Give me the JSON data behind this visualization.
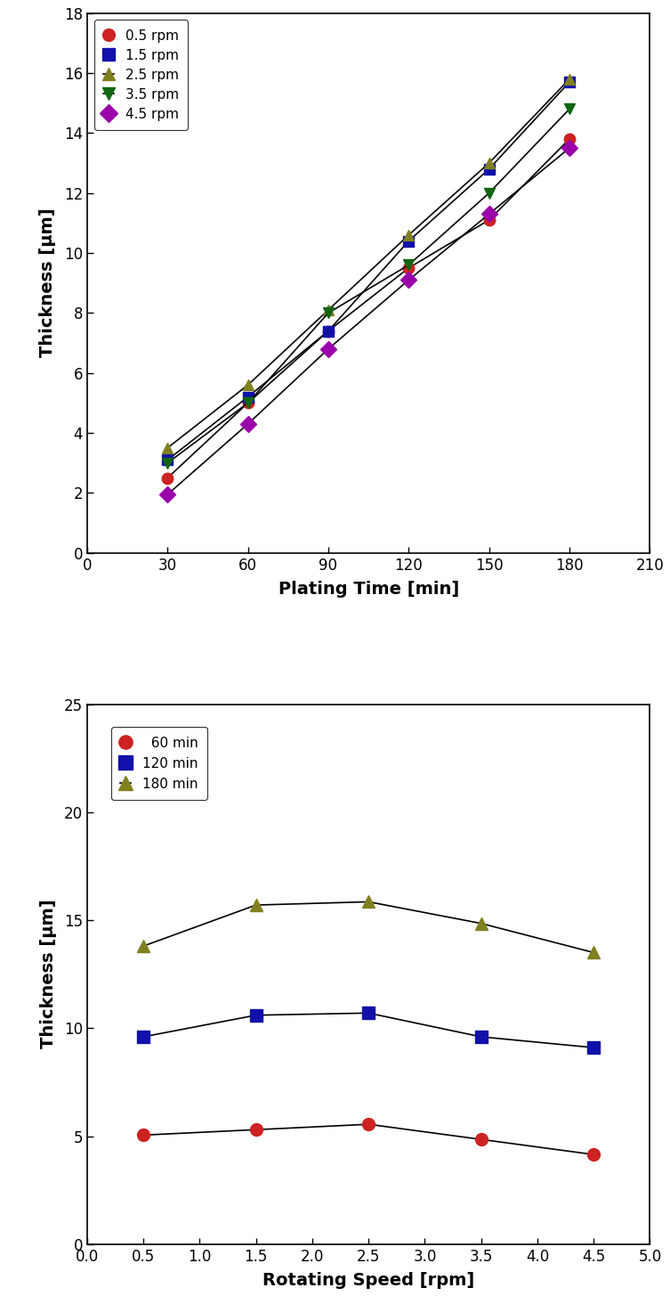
{
  "plot1": {
    "xlabel": "Plating Time [min]",
    "ylabel": "Thickness [μm]",
    "xlim": [
      0,
      210
    ],
    "ylim": [
      0,
      18
    ],
    "xticks": [
      0,
      30,
      60,
      90,
      120,
      150,
      180,
      210
    ],
    "yticks": [
      0,
      2,
      4,
      6,
      8,
      10,
      12,
      14,
      16,
      18
    ],
    "series": [
      {
        "label": "0.5 rpm",
        "color": "#CC2222",
        "marker": "o",
        "x": [
          30,
          60,
          90,
          120,
          150,
          180
        ],
        "y": [
          2.5,
          5.0,
          7.4,
          9.5,
          11.1,
          13.8
        ]
      },
      {
        "label": "1.5 rpm",
        "color": "#1111AA",
        "marker": "s",
        "x": [
          30,
          60,
          90,
          120,
          150,
          180
        ],
        "y": [
          3.1,
          5.2,
          7.4,
          10.4,
          12.8,
          15.7
        ]
      },
      {
        "label": "2.5 rpm",
        "color": "#808020",
        "marker": "^",
        "x": [
          30,
          60,
          90,
          120,
          150,
          180
        ],
        "y": [
          3.5,
          5.6,
          8.1,
          10.6,
          13.0,
          15.8
        ]
      },
      {
        "label": "3.5 rpm",
        "color": "#116611",
        "marker": "v",
        "x": [
          30,
          60,
          90,
          120,
          150,
          180
        ],
        "y": [
          3.0,
          5.0,
          8.0,
          9.6,
          12.0,
          14.8
        ]
      },
      {
        "label": "4.5 rpm",
        "color": "#9900AA",
        "marker": "D",
        "x": [
          30,
          60,
          90,
          120,
          150,
          180
        ],
        "y": [
          1.95,
          4.3,
          6.8,
          9.1,
          11.3,
          13.5
        ]
      }
    ]
  },
  "plot2": {
    "xlabel": "Rotating Speed [rpm]",
    "ylabel": "Thickness [μm]",
    "xlim": [
      0.0,
      5.0
    ],
    "ylim": [
      0,
      25
    ],
    "xticks": [
      0.0,
      0.5,
      1.0,
      1.5,
      2.0,
      2.5,
      3.0,
      3.5,
      4.0,
      4.5,
      5.0
    ],
    "yticks": [
      0,
      5,
      10,
      15,
      20,
      25
    ],
    "series": [
      {
        "label": "  60 min",
        "color": "#CC2222",
        "marker": "o",
        "x": [
          0.5,
          1.5,
          2.5,
          3.5,
          4.5
        ],
        "y": [
          5.05,
          5.3,
          5.55,
          4.85,
          4.15
        ]
      },
      {
        "label": "120 min",
        "color": "#1111AA",
        "marker": "s",
        "x": [
          0.5,
          1.5,
          2.5,
          3.5,
          4.5
        ],
        "y": [
          9.6,
          10.6,
          10.7,
          9.6,
          9.1
        ]
      },
      {
        "label": "180 min",
        "color": "#808020",
        "marker": "^",
        "x": [
          0.5,
          1.5,
          2.5,
          3.5,
          4.5
        ],
        "y": [
          13.8,
          15.7,
          15.85,
          14.85,
          13.5
        ]
      }
    ]
  }
}
